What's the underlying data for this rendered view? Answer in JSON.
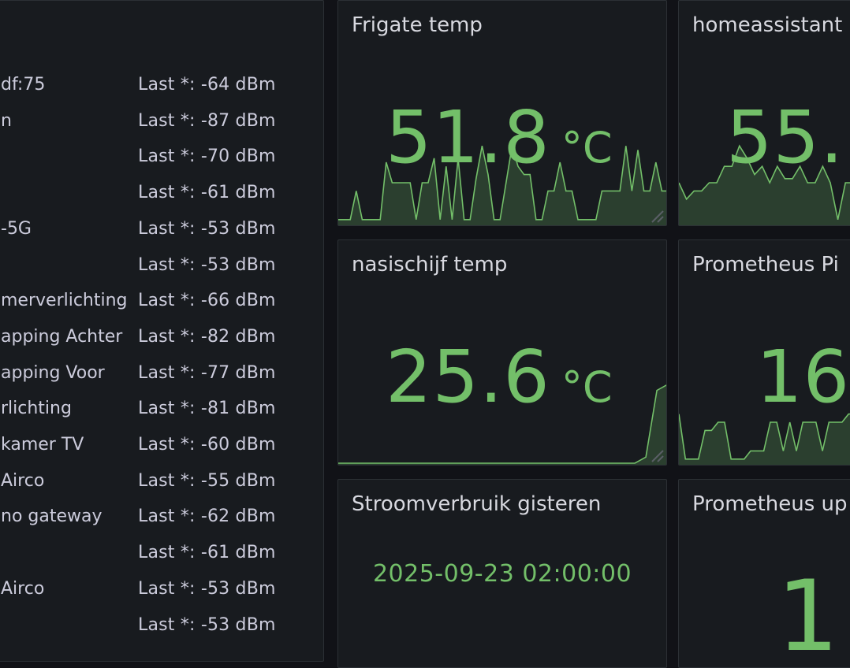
{
  "colors": {
    "accent": "#73bf69",
    "panel_bg": "#181b1f",
    "border": "#2c3035"
  },
  "list_panel": {
    "rows": [
      {
        "name": "df:75",
        "value": "Last *: -64 dBm"
      },
      {
        "name": "n",
        "value": "Last *: -87 dBm"
      },
      {
        "name": "",
        "value": "Last *: -70 dBm"
      },
      {
        "name": "",
        "value": "Last *: -61 dBm"
      },
      {
        "name": "-5G",
        "value": "Last *: -53 dBm"
      },
      {
        "name": "",
        "value": "Last *: -53 dBm"
      },
      {
        "name": "merverlichting",
        "value": "Last *: -66 dBm"
      },
      {
        "name": "apping Achter",
        "value": "Last *: -82 dBm"
      },
      {
        "name": "apping Voor",
        "value": "Last *: -77 dBm"
      },
      {
        "name": "rlichting",
        "value": "Last *: -81 dBm"
      },
      {
        "name": "kamer TV",
        "value": "Last *: -60 dBm"
      },
      {
        "name": "Airco",
        "value": "Last *: -55 dBm"
      },
      {
        "name": "no gateway",
        "value": "Last *: -62 dBm"
      },
      {
        "name": "",
        "value": "Last *: -61 dBm"
      },
      {
        "name": "Airco",
        "value": "Last *: -53 dBm"
      },
      {
        "name": "",
        "value": "Last *: -53 dBm"
      }
    ]
  },
  "stats": {
    "frigate": {
      "title": "Frigate temp",
      "value": "51.8",
      "unit": "°C",
      "spark": [
        0.05,
        0.05,
        0.05,
        0.4,
        0.05,
        0.05,
        0.05,
        0.05,
        0.75,
        0.5,
        0.5,
        0.5,
        0.5,
        0.05,
        0.5,
        0.5,
        0.8,
        0.05,
        0.7,
        0.05,
        0.8,
        0.05,
        0.05,
        0.55,
        0.95,
        0.6,
        0.05,
        0.05,
        0.5,
        0.95,
        0.7,
        0.6,
        0.6,
        0.05,
        0.05,
        0.4,
        0.4,
        0.75,
        0.4,
        0.4,
        0.05,
        0.05,
        0.05,
        0.05,
        0.4,
        0.4,
        0.4,
        0.4,
        0.95,
        0.4,
        0.9,
        0.4,
        0.4,
        0.75,
        0.4,
        0.4
      ]
    },
    "homeassistant": {
      "title": "homeassistant",
      "value": "55.",
      "unit": "",
      "spark": [
        0.5,
        0.3,
        0.4,
        0.4,
        0.5,
        0.5,
        0.7,
        0.7,
        0.95,
        0.8,
        0.6,
        0.7,
        0.5,
        0.7,
        0.55,
        0.55,
        0.7,
        0.5,
        0.5,
        0.7,
        0.5,
        0.05,
        0.5,
        0.5,
        0.5,
        0.5
      ]
    },
    "nasischijf": {
      "title": "nasischijf temp",
      "value": "25.6",
      "unit": "°C",
      "spark": [
        0.0,
        0.0,
        0.0,
        0.0,
        0.0,
        0.0,
        0.0,
        0.0,
        0.0,
        0.0,
        0.0,
        0.0,
        0.0,
        0.0,
        0.0,
        0.0,
        0.0,
        0.0,
        0.0,
        0.0,
        0.0,
        0.0,
        0.0,
        0.0,
        0.0,
        0.0,
        0.0,
        0.0,
        0.05,
        0.6,
        0.65
      ]
    },
    "prometheus_ping": {
      "title": "Prometheus Pi",
      "value": "16",
      "unit": "",
      "spark": [
        0.6,
        0.05,
        0.05,
        0.05,
        0.4,
        0.4,
        0.5,
        0.5,
        0.05,
        0.05,
        0.05,
        0.15,
        0.15,
        0.15,
        0.5,
        0.5,
        0.15,
        0.5,
        0.15,
        0.5,
        0.5,
        0.5,
        0.15,
        0.5,
        0.5,
        0.5,
        0.6,
        0.6,
        0.7,
        0.7
      ]
    },
    "stroomverbruik": {
      "title": "Stroomverbruik gisteren",
      "value": "2025-09-23 02:00:00"
    },
    "prometheus_up": {
      "title": "Prometheus up",
      "value": "1"
    }
  }
}
